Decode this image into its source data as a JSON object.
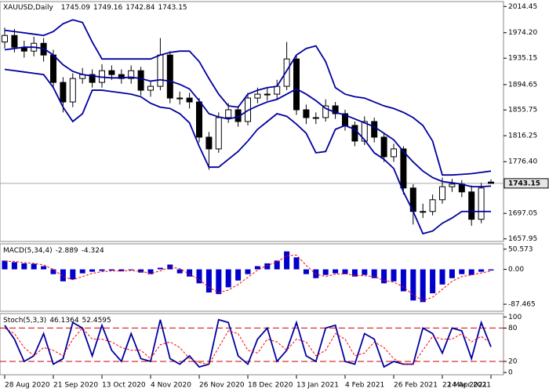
{
  "chart_data": [
    {
      "type": "candlestick",
      "title": "XAUUSD,Daily",
      "categories": [
        "28 Aug 2020",
        null,
        null,
        null,
        null,
        "21 Sep 2020",
        null,
        null,
        null,
        null,
        "13 Oct 2020",
        null,
        null,
        null,
        null,
        "4 Nov 2020",
        null,
        null,
        null,
        null,
        "26 Nov 2020",
        null,
        null,
        null,
        null,
        "18 Dec 2020",
        null,
        null,
        null,
        null,
        "13 Jan 2021",
        null,
        null,
        null,
        null,
        "4 Feb 2021",
        null,
        null,
        null,
        null,
        "26 Feb 2021",
        null,
        null,
        null,
        null,
        "22 Mar 2021",
        null,
        null,
        null,
        null,
        "14 Apr 2021"
      ],
      "open": [
        1960,
        1970,
        1952,
        1946,
        1958,
        1940,
        1898,
        1868,
        1904,
        1910,
        1898,
        1916,
        1910,
        1904,
        1916,
        1886,
        1892,
        1940,
        1874,
        1874,
        1868,
        1814,
        1796,
        1844,
        1856,
        1838,
        1874,
        1880,
        1880,
        1892,
        1934,
        1856,
        1844,
        1844,
        1862,
        1850,
        1832,
        1808,
        1838,
        1814,
        1784,
        1796,
        1736,
        1700,
        1700,
        1718,
        1738,
        1742,
        1730,
        1688,
        1745.09
      ],
      "high": [
        1982,
        1980,
        1962,
        1968,
        1966,
        1948,
        1906,
        1912,
        1920,
        1918,
        1926,
        1924,
        1918,
        1924,
        1922,
        1900,
        1966,
        1946,
        1884,
        1882,
        1874,
        1822,
        1852,
        1866,
        1862,
        1882,
        1890,
        1890,
        1902,
        1960,
        1940,
        1864,
        1852,
        1872,
        1868,
        1856,
        1838,
        1846,
        1844,
        1820,
        1804,
        1800,
        1742,
        1712,
        1726,
        1752,
        1750,
        1748,
        1740,
        1744,
        1749.16
      ],
      "low": [
        1950,
        1944,
        1936,
        1938,
        1930,
        1888,
        1852,
        1860,
        1896,
        1890,
        1890,
        1902,
        1896,
        1896,
        1878,
        1876,
        1886,
        1866,
        1864,
        1858,
        1806,
        1764,
        1790,
        1836,
        1830,
        1832,
        1866,
        1870,
        1872,
        1886,
        1848,
        1834,
        1834,
        1838,
        1842,
        1824,
        1800,
        1802,
        1806,
        1776,
        1776,
        1726,
        1680,
        1690,
        1694,
        1712,
        1730,
        1722,
        1678,
        1682,
        1742.84
      ],
      "close": [
        1970,
        1952,
        1946,
        1958,
        1940,
        1898,
        1868,
        1904,
        1910,
        1898,
        1916,
        1910,
        1904,
        1916,
        1886,
        1892,
        1940,
        1874,
        1874,
        1868,
        1814,
        1796,
        1844,
        1856,
        1838,
        1874,
        1880,
        1880,
        1892,
        1934,
        1856,
        1844,
        1844,
        1862,
        1850,
        1832,
        1808,
        1838,
        1814,
        1784,
        1796,
        1736,
        1700,
        1700,
        1718,
        1738,
        1742,
        1730,
        1688,
        1736,
        1743.15
      ],
      "up_color": "#ffffff",
      "down_color": "#000000",
      "bands": [
        {
          "color": "#0000a0",
          "values": [
            1978,
            1976,
            1974,
            1972,
            1970,
            1976,
            1988,
            1994,
            1990,
            1960,
            1934,
            1934,
            1934,
            1934,
            1934,
            1934,
            1940,
            1944,
            1946,
            1946,
            1930,
            1904,
            1880,
            1862,
            1860,
            1880,
            1886,
            1890,
            1892,
            1916,
            1940,
            1950,
            1954,
            1930,
            1890,
            1880,
            1876,
            1874,
            1868,
            1862,
            1858,
            1852,
            1844,
            1832,
            1808,
            1756,
            1756,
            1757,
            1758,
            1760,
            1762
          ]
        },
        {
          "color": "#0000a0",
          "values": [
            1948,
            1950,
            1952,
            1952,
            1950,
            1940,
            1925,
            1915,
            1910,
            1908,
            1906,
            1905,
            1905,
            1906,
            1904,
            1900,
            1902,
            1900,
            1895,
            1888,
            1870,
            1850,
            1845,
            1842,
            1845,
            1855,
            1862,
            1868,
            1872,
            1880,
            1888,
            1880,
            1870,
            1858,
            1852,
            1848,
            1842,
            1836,
            1830,
            1820,
            1810,
            1792,
            1776,
            1762,
            1752,
            1746,
            1744,
            1742,
            1738,
            1738,
            1739
          ]
        },
        {
          "color": "#0000a0",
          "values": [
            1918,
            1916,
            1914,
            1912,
            1910,
            1890,
            1860,
            1838,
            1850,
            1886,
            1886,
            1884,
            1882,
            1880,
            1876,
            1866,
            1860,
            1858,
            1850,
            1836,
            1800,
            1768,
            1768,
            1780,
            1792,
            1808,
            1826,
            1838,
            1850,
            1846,
            1834,
            1820,
            1790,
            1792,
            1826,
            1832,
            1826,
            1810,
            1790,
            1780,
            1766,
            1730,
            1700,
            1666,
            1670,
            1682,
            1690,
            1700,
            1700,
            1700,
            1700
          ]
        }
      ],
      "ylim": [
        1654,
        2022
      ],
      "yticks": [
        2014.45,
        {
          "value": 1974.2,
          "label": "1974.20"
        },
        1935.15,
        1894.65,
        1855.75,
        1816.25,
        {
          "value": 1776.4,
          "label": "1776.40"
        },
        1697.05,
        1657.95
      ]
    },
    {
      "type": "macd",
      "title": "MACD(5,34,4)",
      "histogram": [
        22,
        18,
        15,
        14,
        8,
        -12,
        -30,
        -25,
        -10,
        -6,
        -4,
        -3,
        -5,
        -2,
        -8,
        -12,
        4,
        12,
        -10,
        -18,
        -35,
        -58,
        -62,
        -45,
        -28,
        -12,
        8,
        15,
        22,
        45,
        30,
        -12,
        -22,
        -14,
        -10,
        -12,
        -18,
        -14,
        -22,
        -35,
        -30,
        -55,
        -78,
        -82,
        -60,
        -38,
        -22,
        -12,
        -14,
        -6,
        -2.889
      ],
      "signal": [
        20,
        20,
        17,
        15,
        11,
        0,
        -18,
        -26,
        -18,
        -10,
        -6,
        -4,
        -4,
        -3,
        -5,
        -10,
        -4,
        6,
        2,
        -12,
        -26,
        -45,
        -58,
        -52,
        -38,
        -20,
        -2,
        10,
        18,
        34,
        36,
        10,
        -12,
        -18,
        -12,
        -11,
        -15,
        -16,
        -18,
        -28,
        -32,
        -44,
        -64,
        -78,
        -70,
        -50,
        -30,
        -18,
        -14,
        -9,
        -4.324
      ],
      "histogram_color": "#0000cc",
      "signal_color": "#ff0000",
      "ylim": [
        -105,
        64
      ],
      "yticks": [
        50.573,
        {
          "value": 0,
          "label": "0.00"
        },
        -87.465
      ]
    },
    {
      "type": "stochastic",
      "title": "Stoch(5,3,3)",
      "k": [
        85,
        60,
        20,
        30,
        70,
        15,
        25,
        90,
        80,
        30,
        85,
        40,
        20,
        70,
        25,
        20,
        95,
        25,
        15,
        30,
        10,
        15,
        95,
        90,
        30,
        15,
        60,
        80,
        20,
        40,
        90,
        30,
        20,
        80,
        85,
        20,
        15,
        70,
        60,
        10,
        20,
        15,
        15,
        80,
        70,
        35,
        80,
        75,
        25,
        90,
        46.1364
      ],
      "d": [
        80,
        70,
        45,
        30,
        45,
        40,
        30,
        60,
        80,
        60,
        60,
        55,
        45,
        40,
        40,
        25,
        50,
        55,
        45,
        25,
        18,
        15,
        45,
        75,
        70,
        40,
        35,
        60,
        55,
        40,
        60,
        55,
        30,
        40,
        70,
        60,
        30,
        35,
        55,
        45,
        25,
        15,
        15,
        40,
        65,
        60,
        60,
        70,
        55,
        65,
        52.4595
      ],
      "k_color": "#0000a0",
      "d_color": "#ff0000",
      "levels": [
        80,
        20
      ],
      "level_color": "#cc0000",
      "ylim": [
        -4,
        106
      ],
      "yticks": [
        100,
        80,
        20,
        0
      ]
    }
  ]
}
